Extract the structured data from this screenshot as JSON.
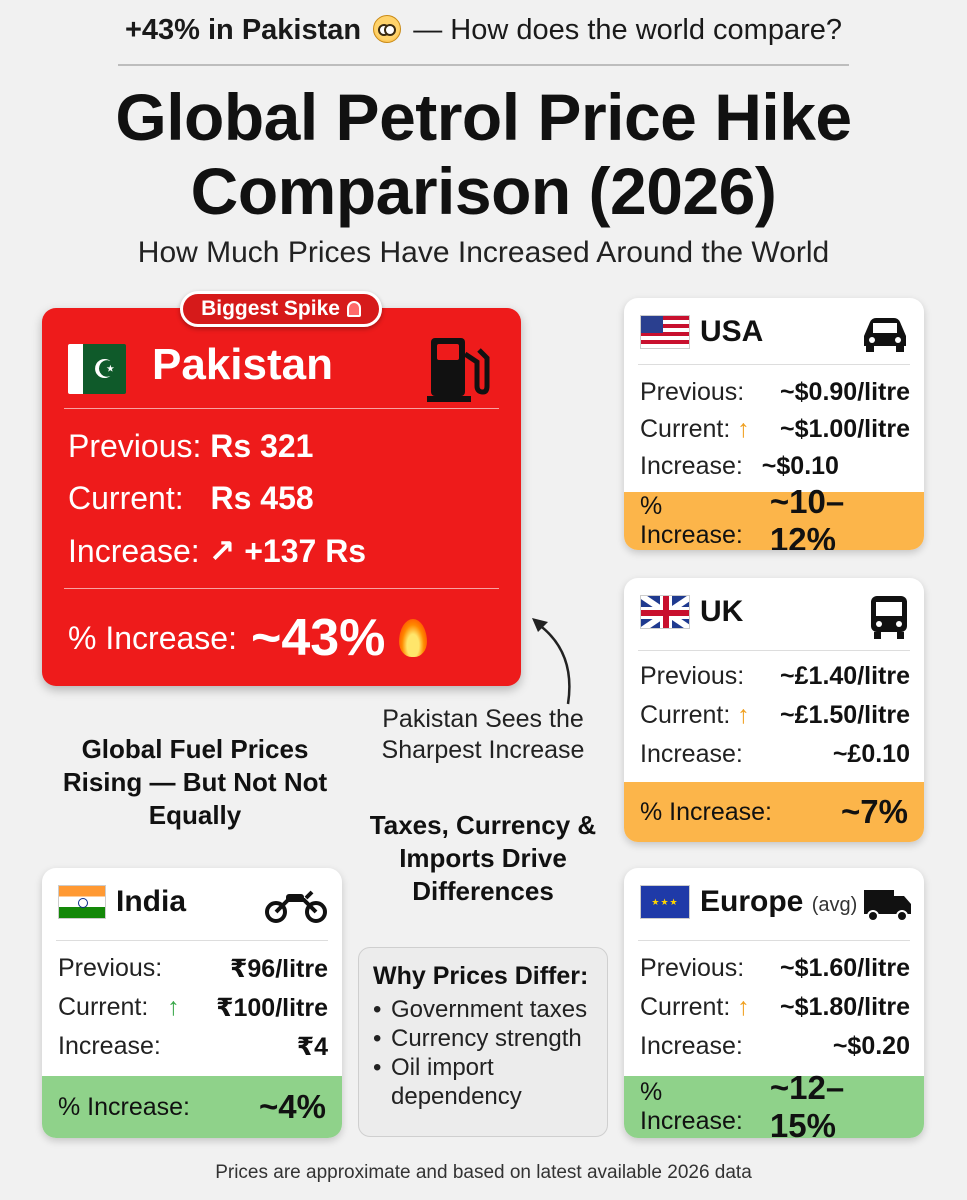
{
  "header": {
    "top_bold": "+43% in Pakistan",
    "top_rest": "— How does the world compare?",
    "title_line1": "Global Petrol Price Hike",
    "title_line2": "Comparison (2026)",
    "subtitle": "How Much Prices Have Increased Around the World"
  },
  "pakistan": {
    "badge": "Biggest Spike",
    "name": "Pakistan",
    "previous_label": "Previous:",
    "previous_value": "Rs 321",
    "current_label": "Current:",
    "current_value": "Rs 458",
    "increase_label": "Increase:",
    "increase_value": "↗ +137 Rs",
    "pct_label": "% Increase:",
    "pct_value": "~43%"
  },
  "usa": {
    "name": "USA",
    "previous_label": "Previous:",
    "previous_value": "~$0.90/litre",
    "current_label": "Current:",
    "current_value": "~$1.00/litre",
    "increase_label": "Increase:",
    "increase_value": "~$0.10",
    "pct_label": "% Increase:",
    "pct_value": "~10–12%"
  },
  "uk": {
    "name": "UK",
    "previous_label": "Previous:",
    "previous_value": "~£1.40/litre",
    "current_label": "Current:",
    "current_value": "~£1.50/litre",
    "increase_label": "Increase:",
    "increase_value": "~£0.10",
    "pct_label": "% Increase:",
    "pct_value": "~7%"
  },
  "india": {
    "name": "India",
    "previous_label": "Previous:",
    "previous_value": "₹96/litre",
    "current_label": "Current:",
    "current_value": "₹100/litre",
    "increase_label": "Increase:",
    "increase_value": "₹4",
    "pct_label": "% Increase:",
    "pct_value": "~4%"
  },
  "europe": {
    "name": "Europe",
    "name_suffix": "(avg)",
    "previous_label": "Previous:",
    "previous_value": "~$1.60/litre",
    "current_label": "Current:",
    "current_value": "~$1.80/litre",
    "increase_label": "Increase:",
    "increase_value": "~$0.20",
    "pct_label": "% Increase:",
    "pct_value": "~12–15%"
  },
  "notes": {
    "sharpest": "Pakistan Sees the Sharpest Increase",
    "global": "Global Fuel Prices Rising — But Not Not Equally",
    "drivers": "Taxes, Currency & Imports Drive Differences"
  },
  "why": {
    "title": "Why Prices Differ:",
    "items": [
      "Government taxes",
      "Currency strength",
      "Oil import dependency"
    ]
  },
  "disclaimer": "Prices are approximate and based on latest available 2026 data",
  "icons": {
    "pakistan": "fuel-pump-icon",
    "usa": "car-icon",
    "uk": "bus-icon",
    "india": "motorcycle-icon",
    "europe": "truck-icon"
  },
  "colors": {
    "pakistan_card": "#ee1b1b",
    "orange_footer": "#fcb54a",
    "green_footer": "#8fd28a",
    "arrow_orange": "#f0a020",
    "arrow_green": "#3aa84a"
  }
}
